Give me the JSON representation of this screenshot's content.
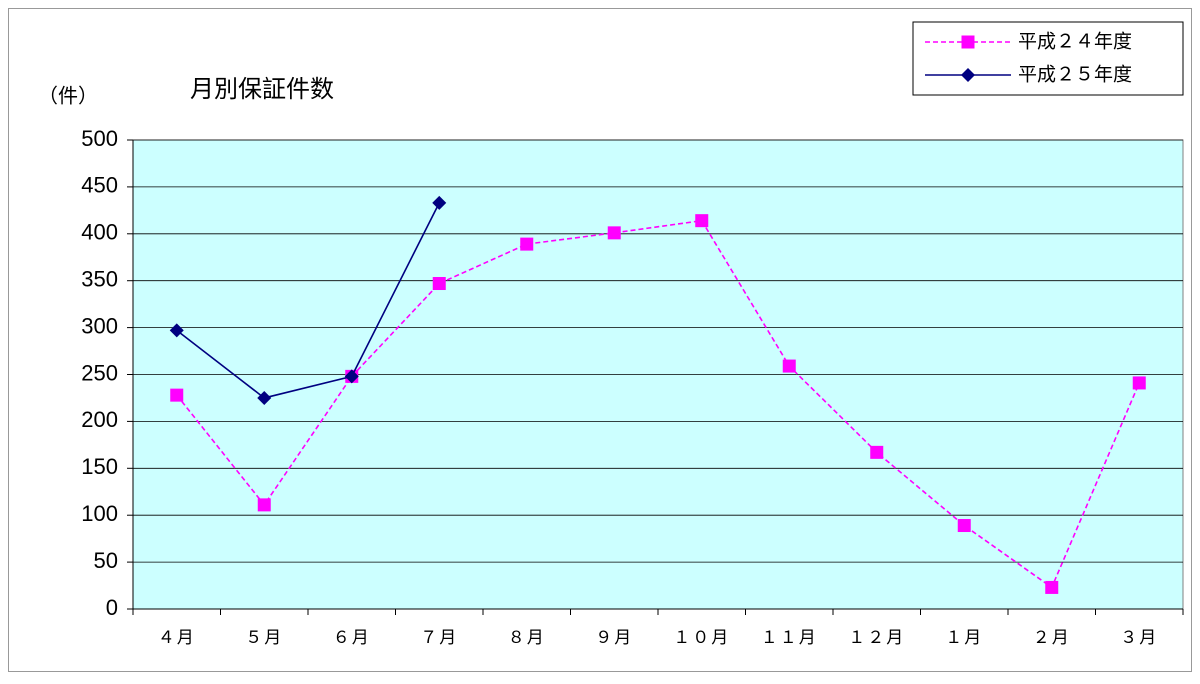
{
  "chart_data": {
    "type": "line",
    "title": "月別保証件数",
    "y_label": "（件）",
    "categories": [
      "４月",
      "５月",
      "６月",
      "７月",
      "８月",
      "９月",
      "１０月",
      "１１月",
      "１２月",
      "１月",
      "２月",
      "３月"
    ],
    "series": [
      {
        "name": "平成２４年度",
        "color": "#ff00ff",
        "line_style": "dashed",
        "marker": "square",
        "values": [
          228,
          111,
          248,
          347,
          389,
          401,
          414,
          259,
          167,
          89,
          23,
          241
        ]
      },
      {
        "name": "平成２５年度",
        "color": "#000080",
        "line_style": "solid",
        "marker": "diamond",
        "values": [
          297,
          225,
          248,
          433,
          null,
          null,
          null,
          null,
          null,
          null,
          null,
          null
        ]
      }
    ],
    "ylim": [
      0,
      500
    ],
    "yticks": [
      0,
      50,
      100,
      150,
      200,
      250,
      300,
      350,
      400,
      450,
      500
    ],
    "grid": true,
    "legend_position": "upper right",
    "plot_background": "#ccffff"
  }
}
